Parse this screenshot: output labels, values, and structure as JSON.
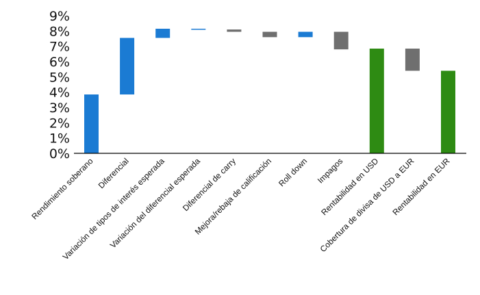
{
  "chart_data": {
    "type": "bar",
    "subtype": "waterfall",
    "title": "",
    "xlabel": "",
    "ylabel": "",
    "ylim": [
      0,
      9
    ],
    "y_tick_labels": [
      "0%",
      "1%",
      "2%",
      "3%",
      "4%",
      "5%",
      "6%",
      "7%",
      "8%",
      "9%"
    ],
    "grid": false,
    "legend": "none",
    "bars": [
      {
        "label": "Rendimiento soberano",
        "low": 0,
        "high": 3.85,
        "color": "#1b7bd3"
      },
      {
        "label": "Diferencial",
        "low": 3.85,
        "high": 7.55,
        "color": "#1b7bd3"
      },
      {
        "label": "Variación de tipos de interés esperada",
        "low": 7.55,
        "high": 8.15,
        "color": "#1b7bd3"
      },
      {
        "label": "Variación del diferencial esperada",
        "low": 8.1,
        "high": 8.15,
        "color": "#1b7bd3"
      },
      {
        "label": "Diferencial  de carry",
        "low": 7.95,
        "high": 8.1,
        "color": "#6f6f6f"
      },
      {
        "label": "Mejora/rebaja de calificación",
        "low": 7.6,
        "high": 7.95,
        "color": "#6f6f6f"
      },
      {
        "label": "Roll down",
        "low": 7.6,
        "high": 7.95,
        "color": "#1b7bd3"
      },
      {
        "label": "Impagos",
        "low": 6.8,
        "high": 7.95,
        "color": "#6f6f6f"
      },
      {
        "label": "Rentabilidad  en USD",
        "low": 0,
        "high": 6.85,
        "color": "#2e8b13"
      },
      {
        "label": "Cobertura de divisa de USD a EUR",
        "low": 5.4,
        "high": 6.85,
        "color": "#6f6f6f"
      },
      {
        "label": "Rentabilidad  en EUR",
        "low": 0,
        "high": 5.4,
        "color": "#2e8b13"
      }
    ]
  }
}
